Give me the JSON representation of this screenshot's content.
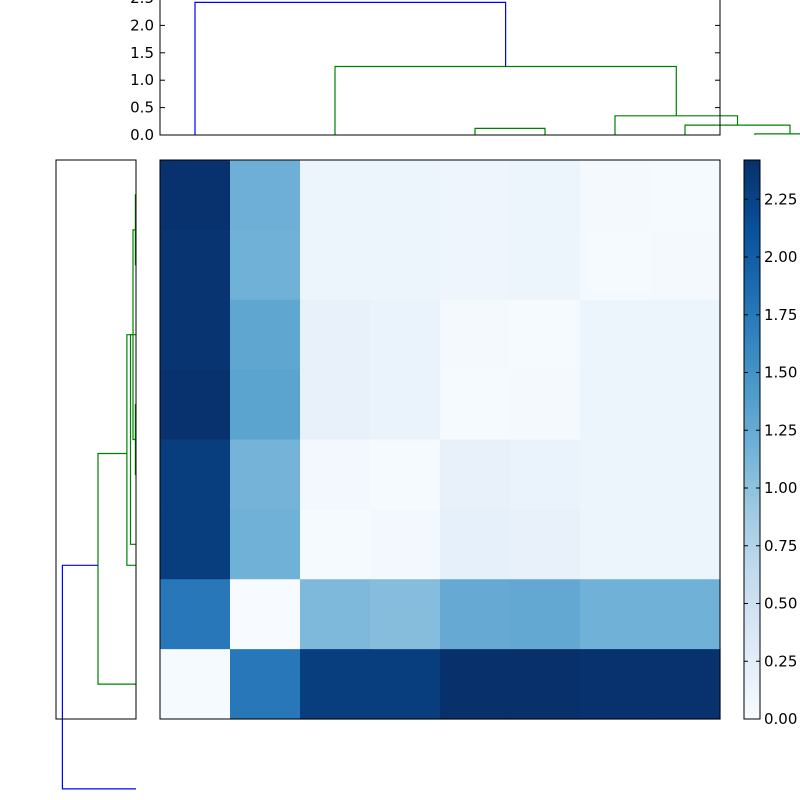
{
  "chart_data": [
    {
      "type": "dendrogram",
      "orientation": "top",
      "ylim": [
        0,
        2.5
      ],
      "yticks": [
        "0.0",
        "0.5",
        "1.0",
        "1.5",
        "2.0",
        "2.5"
      ],
      "colors": {
        "top_cluster": "#0000ff",
        "sub_cluster": "#008000"
      },
      "links": [
        {
          "x": [
            5,
            5,
            15,
            15
          ],
          "y": [
            0,
            0.12,
            0.12,
            0
          ],
          "color": "#008000"
        },
        {
          "x": [
            45,
            45,
            55,
            55
          ],
          "y": [
            0,
            0.02,
            0.02,
            0
          ],
          "color": "#008000"
        },
        {
          "x": [
            65,
            65,
            75,
            75
          ],
          "y": [
            0,
            0.02,
            0.02,
            0
          ],
          "color": "#008000"
        },
        {
          "x": [
            35,
            35,
            50,
            50
          ],
          "y": [
            0,
            0.18,
            0.18,
            0.02
          ],
          "color": "#008000"
        },
        {
          "x": [
            25,
            25,
            42.5,
            42.5
          ],
          "y": [
            0,
            0.35,
            0.35,
            0.18
          ],
          "color": "#008000"
        },
        {
          "x": [
            -15,
            -15,
            33.75,
            33.75
          ],
          "y": [
            0,
            1.25,
            1.25,
            0.35
          ],
          "color": "#008000"
        },
        {
          "x": [
            -35,
            -35,
            9.375,
            9.375
          ],
          "y": [
            0,
            2.42,
            2.42,
            1.25
          ],
          "color": "#0000ff"
        }
      ]
    },
    {
      "type": "dendrogram",
      "orientation": "left",
      "links": [
        {
          "y": [
            5,
            5,
            15,
            15
          ],
          "x": [
            0,
            0.02,
            0.02,
            0
          ],
          "color": "#008000"
        },
        {
          "y": [
            35,
            35,
            45,
            45
          ],
          "x": [
            0,
            0.02,
            0.02,
            0
          ],
          "color": "#008000"
        },
        {
          "y": [
            55,
            55,
            25,
            25
          ],
          "x": [
            0,
            0.18,
            0.18,
            0
          ],
          "color": "#008000"
        },
        {
          "y": [
            40,
            40,
            10,
            10
          ],
          "x": [
            0.02,
            0.1,
            0.1,
            0.02
          ],
          "color": "#008000"
        },
        {
          "y": [
            58,
            58,
            25,
            25
          ],
          "x": [
            0,
            0.3,
            0.3,
            0.1
          ],
          "color": "#008000"
        },
        {
          "y": [
            75,
            75,
            42,
            42
          ],
          "x": [
            0,
            1.25,
            1.25,
            0.3
          ],
          "color": "#008000"
        },
        {
          "y": [
            90,
            90,
            58,
            58
          ],
          "x": [
            0,
            2.42,
            2.42,
            1.25
          ],
          "color": "#0000ff"
        }
      ]
    },
    {
      "type": "heatmap",
      "colormap": "Blues",
      "vmin": 0,
      "vmax": 2.42,
      "values": [
        [
          2.4,
          1.2,
          0.12,
          0.13,
          0.11,
          0.12,
          0.04,
          0.02
        ],
        [
          2.38,
          1.18,
          0.12,
          0.13,
          0.11,
          0.12,
          0.02,
          0.04
        ],
        [
          2.38,
          1.3,
          0.18,
          0.16,
          0.04,
          0.02,
          0.12,
          0.13
        ],
        [
          2.4,
          1.32,
          0.18,
          0.16,
          0.02,
          0.04,
          0.12,
          0.13
        ],
        [
          2.3,
          1.15,
          0.06,
          0.02,
          0.18,
          0.16,
          0.13,
          0.13
        ],
        [
          2.3,
          1.18,
          0.02,
          0.06,
          0.2,
          0.18,
          0.13,
          0.13
        ],
        [
          1.75,
          0.0,
          1.1,
          1.05,
          1.25,
          1.28,
          1.18,
          1.18
        ],
        [
          0.02,
          1.75,
          2.3,
          2.3,
          2.42,
          2.42,
          2.4,
          2.4
        ]
      ],
      "colorbar": {
        "ticks": [
          "0.00",
          "0.25",
          "0.50",
          "0.75",
          "1.00",
          "1.25",
          "1.50",
          "1.75",
          "2.00",
          "2.25"
        ],
        "tick_values": [
          0,
          0.25,
          0.5,
          0.75,
          1.0,
          1.25,
          1.5,
          1.75,
          2.0,
          2.25
        ]
      }
    }
  ]
}
